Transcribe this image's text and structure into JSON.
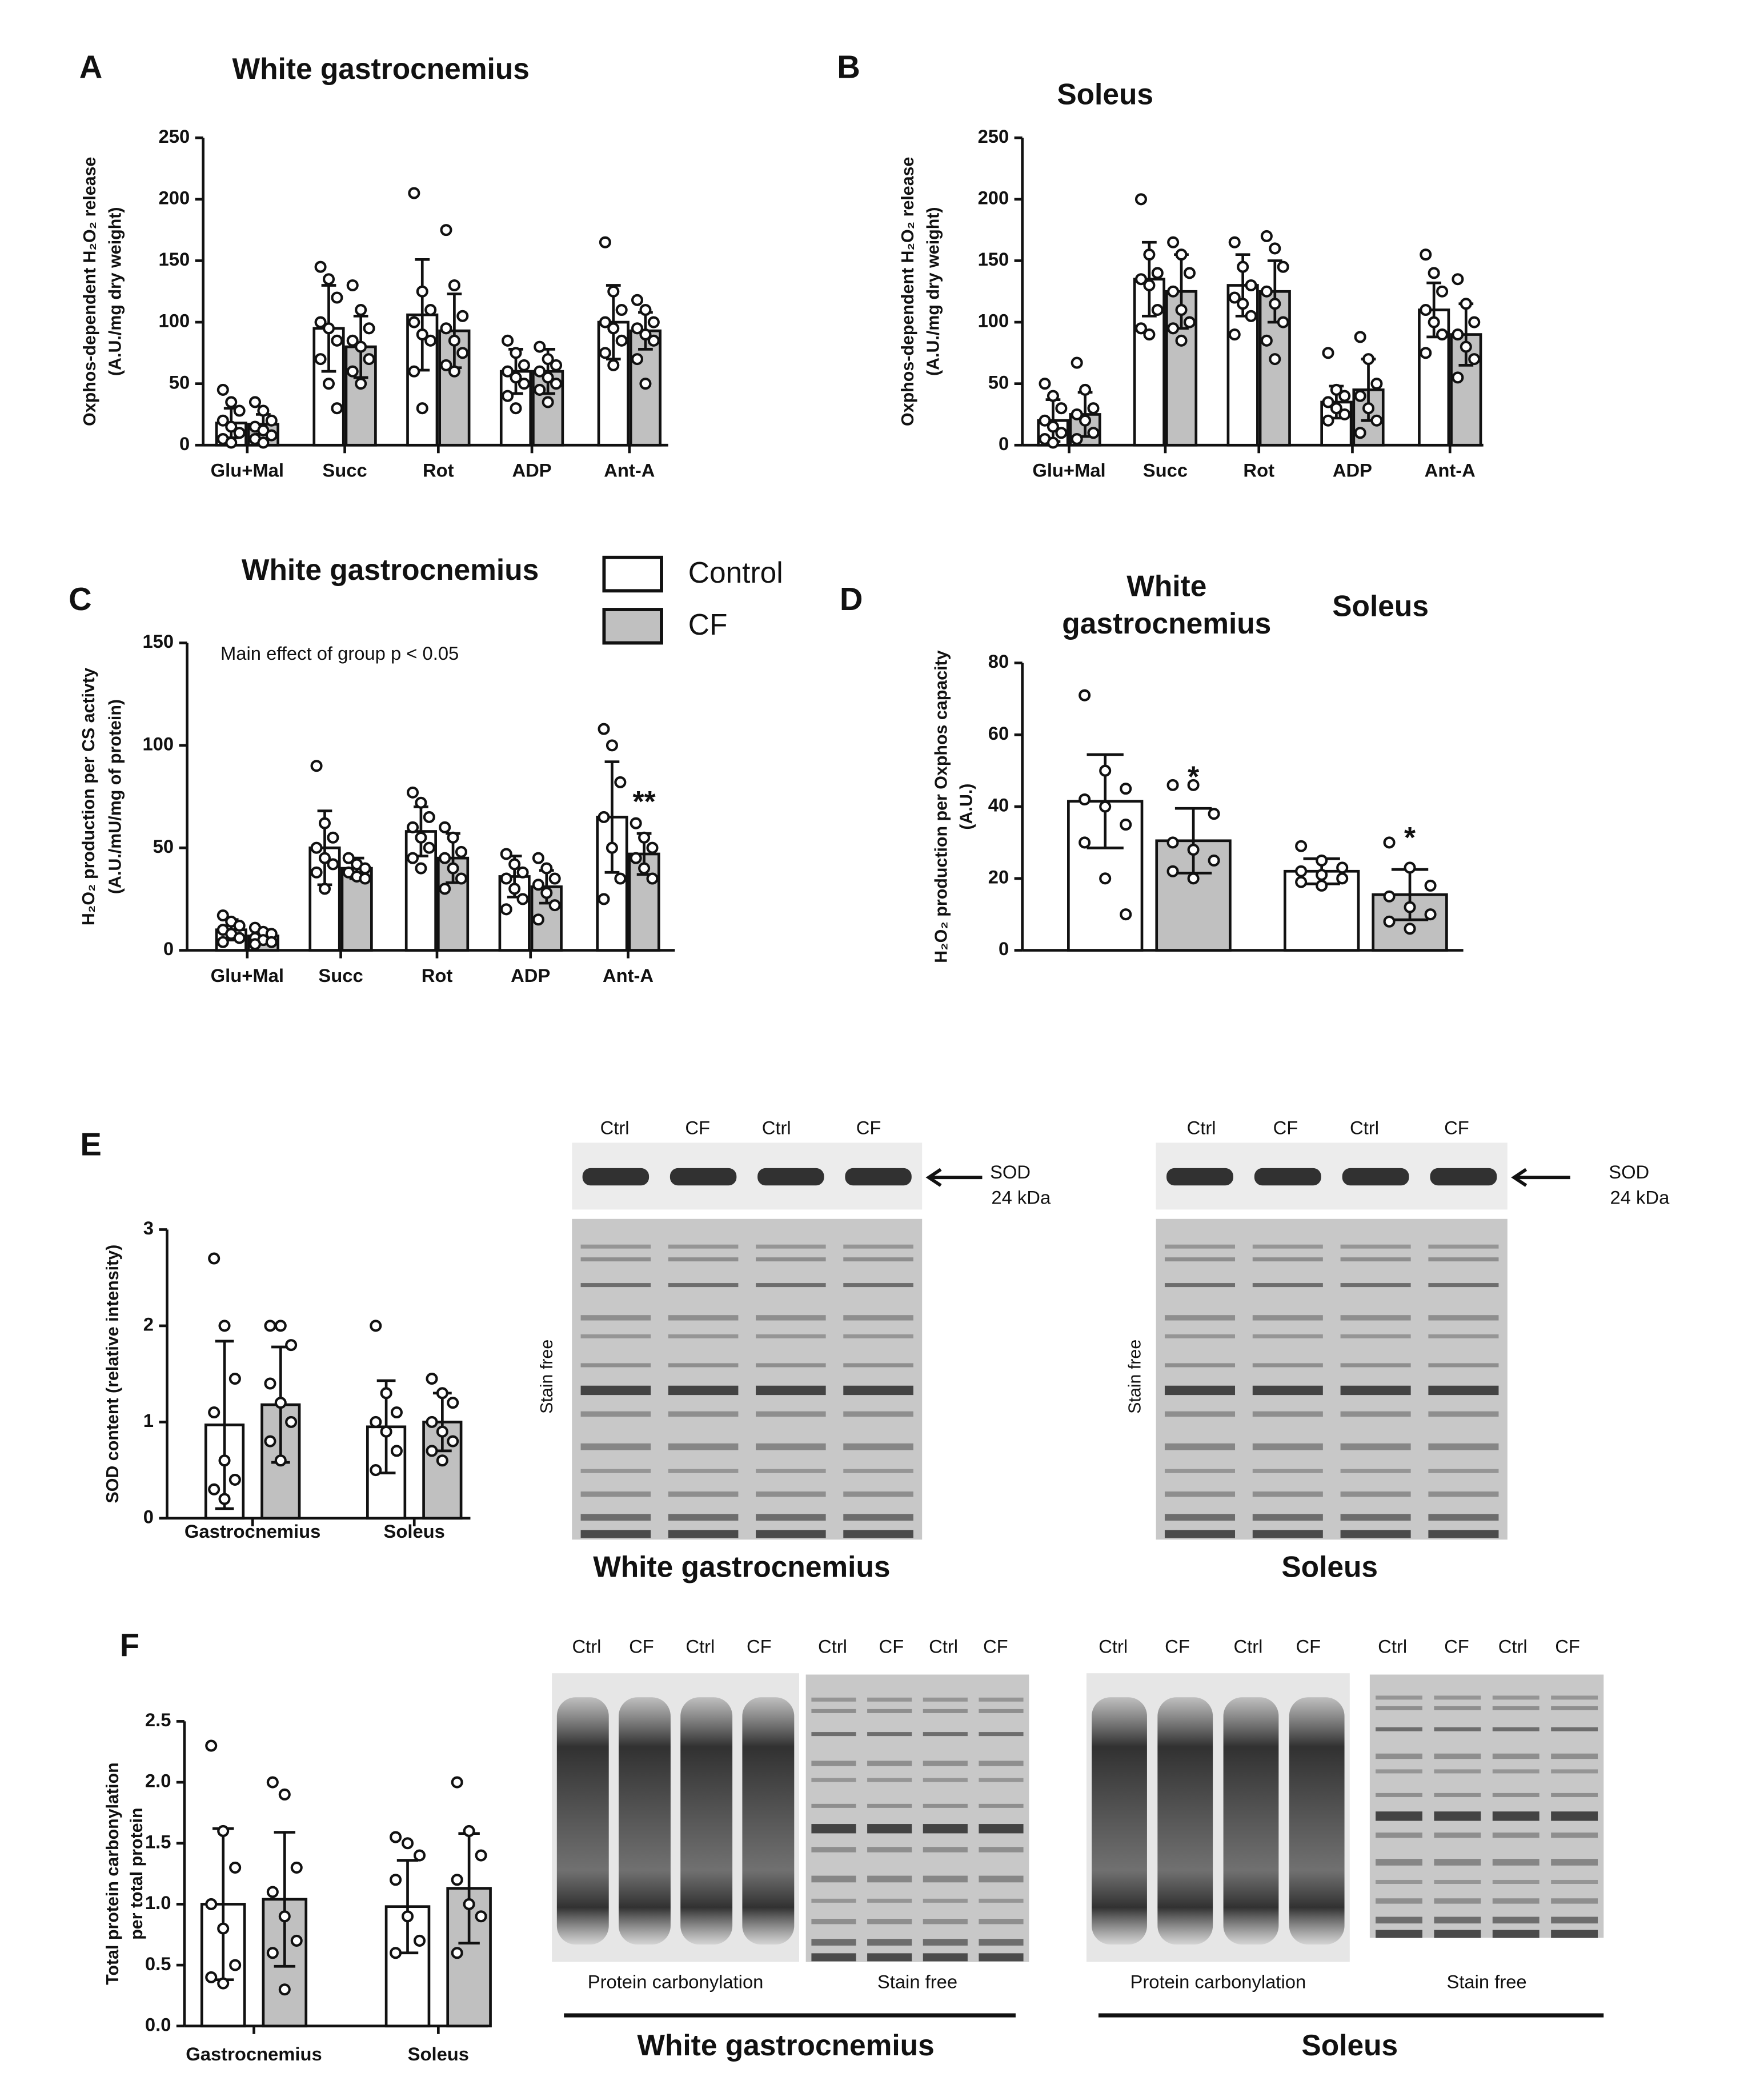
{
  "chart_data": [
    {
      "type": "bar",
      "panel": "A",
      "title": "White gastrocnemius",
      "ylabel": [
        "Oxphos-dependent H₂O₂ release",
        "(A.U./mg dry weight)"
      ],
      "categories": [
        "Glu+Mal",
        "Succ",
        "Rot",
        "ADP",
        "Ant-A"
      ],
      "ylim": [
        0,
        250
      ],
      "yticks": [
        0,
        50,
        100,
        150,
        200,
        250
      ],
      "series": [
        {
          "name": "Control",
          "color": "#ffffff",
          "values": [
            18,
            95,
            106,
            60,
            100
          ],
          "errors": [
            12,
            35,
            45,
            18,
            30
          ],
          "points": [
            [
              45,
              35,
              28,
              20,
              15,
              10,
              5,
              2
            ],
            [
              145,
              135,
              120,
              100,
              95,
              85,
              70,
              50,
              30
            ],
            [
              205,
              125,
              110,
              100,
              90,
              85,
              60,
              30
            ],
            [
              85,
              75,
              65,
              60,
              55,
              50,
              40,
              30
            ],
            [
              165,
              125,
              110,
              100,
              95,
              85,
              75,
              65
            ]
          ]
        },
        {
          "name": "CF",
          "color": "#c0c0c0",
          "values": [
            17,
            80,
            93,
            60,
            93
          ],
          "errors": [
            8,
            25,
            30,
            18,
            15
          ],
          "points": [
            [
              35,
              28,
              20,
              15,
              12,
              8,
              5,
              2
            ],
            [
              130,
              110,
              95,
              85,
              80,
              70,
              60,
              50
            ],
            [
              175,
              130,
              105,
              95,
              85,
              75,
              65,
              60
            ],
            [
              80,
              70,
              65,
              60,
              55,
              50,
              45,
              35
            ],
            [
              118,
              110,
              100,
              95,
              90,
              85,
              70,
              50
            ]
          ]
        }
      ]
    },
    {
      "type": "bar",
      "panel": "B",
      "title": "Soleus",
      "ylabel": [
        "Oxphos-dependent H₂O₂ release",
        "(A.U./mg dry weight)"
      ],
      "categories": [
        "Glu+Mal",
        "Succ",
        "Rot",
        "ADP",
        "Ant-A"
      ],
      "ylim": [
        0,
        250
      ],
      "yticks": [
        0,
        50,
        100,
        150,
        200,
        250
      ],
      "series": [
        {
          "name": "Control",
          "color": "#ffffff",
          "values": [
            20,
            135,
            130,
            35,
            110
          ],
          "errors": [
            17,
            30,
            25,
            13,
            22
          ],
          "points": [
            [
              50,
              40,
              30,
              20,
              15,
              10,
              5,
              2
            ],
            [
              200,
              155,
              140,
              135,
              130,
              110,
              95,
              90
            ],
            [
              165,
              145,
              130,
              120,
              115,
              105,
              90
            ],
            [
              75,
              45,
              40,
              35,
              30,
              25,
              20
            ],
            [
              155,
              140,
              125,
              110,
              100,
              90,
              75
            ]
          ]
        },
        {
          "name": "CF",
          "color": "#c0c0c0",
          "values": [
            25,
            125,
            125,
            45,
            90
          ],
          "errors": [
            18,
            30,
            25,
            25,
            25
          ],
          "points": [
            [
              67,
              45,
              30,
              25,
              20,
              10,
              5
            ],
            [
              165,
              155,
              140,
              125,
              110,
              100,
              95,
              85
            ],
            [
              170,
              160,
              145,
              125,
              115,
              100,
              85,
              70
            ],
            [
              88,
              70,
              50,
              40,
              30,
              20,
              10
            ],
            [
              135,
              115,
              100,
              90,
              80,
              70,
              55
            ]
          ]
        }
      ]
    },
    {
      "type": "bar",
      "panel": "C",
      "title": "White gastrocnemius",
      "ylabel": [
        "H₂O₂ production per CS activty",
        "(A.U./mU/mg of protein)"
      ],
      "note": "Main effect of group p < 0.05",
      "categories": [
        "Glu+Mal",
        "Succ",
        "Rot",
        "ADP",
        "Ant-A"
      ],
      "ylim": [
        0,
        150
      ],
      "yticks": [
        0,
        50,
        100,
        150
      ],
      "legend": true,
      "series": [
        {
          "name": "Control",
          "color": "#ffffff",
          "values": [
            10,
            50,
            58,
            36,
            65
          ],
          "errors": [
            5,
            18,
            12,
            10,
            27
          ],
          "points": [
            [
              17,
              14,
              12,
              10,
              8,
              6,
              4
            ],
            [
              90,
              62,
              55,
              50,
              45,
              42,
              38,
              30
            ],
            [
              77,
              72,
              65,
              60,
              55,
              50,
              45,
              40
            ],
            [
              47,
              42,
              38,
              35,
              30,
              25,
              20
            ],
            [
              108,
              100,
              82,
              65,
              50,
              35,
              25
            ]
          ]
        },
        {
          "name": "CF",
          "color": "#c0c0c0",
          "values": [
            7,
            40,
            45,
            31,
            47
          ],
          "errors": [
            3,
            5,
            12,
            8,
            10
          ],
          "annotations": [
            null,
            null,
            null,
            null,
            "**"
          ],
          "points": [
            [
              11,
              9,
              8,
              6,
              5,
              4,
              3
            ],
            [
              45,
              42,
              40,
              38,
              36,
              35
            ],
            [
              60,
              55,
              48,
              45,
              40,
              35,
              30
            ],
            [
              45,
              40,
              35,
              32,
              28,
              22,
              15
            ],
            [
              62,
              55,
              50,
              45,
              40,
              35
            ]
          ]
        }
      ]
    },
    {
      "type": "bar",
      "panel": "D",
      "ylabel": [
        "H₂O₂ production per Oxphos capacity",
        "(A.U.)"
      ],
      "categories": [
        "White gastrocnemius",
        "Soleus"
      ],
      "ylim": [
        0,
        80
      ],
      "yticks": [
        0,
        20,
        40,
        60,
        80
      ],
      "series": [
        {
          "name": "Control",
          "color": "#ffffff",
          "values": [
            41.5,
            22
          ],
          "errors": [
            13,
            3.5
          ],
          "points": [
            [
              71,
              50,
              45,
              42,
              40,
              35,
              30,
              20,
              10
            ],
            [
              29,
              25,
              23,
              22,
              21,
              20,
              19,
              18
            ]
          ]
        },
        {
          "name": "CF",
          "color": "#c0c0c0",
          "values": [
            30.5,
            15.5
          ],
          "errors": [
            9,
            7
          ],
          "annotations": [
            "*",
            "*"
          ],
          "points": [
            [
              46,
              46,
              38,
              30,
              28,
              25,
              22,
              20
            ],
            [
              30,
              23,
              18,
              15,
              12,
              10,
              8,
              6
            ]
          ]
        }
      ]
    },
    {
      "type": "bar",
      "panel": "E",
      "ylabel": [
        "SOD content (relative intensity)"
      ],
      "categories": [
        "Gastrocnemius",
        "Soleus"
      ],
      "ylim": [
        0,
        3
      ],
      "yticks": [
        0,
        1,
        2,
        3
      ],
      "series": [
        {
          "name": "Control",
          "color": "#ffffff",
          "values": [
            0.97,
            0.95
          ],
          "errors": [
            0.87,
            0.48
          ],
          "points": [
            [
              2.7,
              2.0,
              1.45,
              1.1,
              0.6,
              0.4,
              0.3,
              0.2
            ],
            [
              2.0,
              1.3,
              1.1,
              1.0,
              0.9,
              0.7,
              0.5
            ]
          ]
        },
        {
          "name": "CF",
          "color": "#c0c0c0",
          "values": [
            1.18,
            1.0
          ],
          "errors": [
            0.6,
            0.3
          ],
          "points": [
            [
              2.0,
              2.0,
              1.8,
              1.4,
              1.2,
              1.0,
              0.8,
              0.6
            ],
            [
              1.45,
              1.3,
              1.2,
              1.0,
              0.9,
              0.8,
              0.7,
              0.6
            ]
          ]
        }
      ]
    },
    {
      "type": "bar",
      "panel": "F",
      "ylabel": [
        "Total protein carbonylation",
        "per total protein"
      ],
      "categories": [
        "Gastrocnemius",
        "Soleus"
      ],
      "ylim": [
        0,
        2.5
      ],
      "yticks": [
        {
          "value": 0,
          "label": "0.0"
        },
        0.5,
        {
          "value": 1,
          "label": "1.0"
        },
        1.5,
        {
          "value": 2,
          "label": "2.0"
        },
        2.5
      ],
      "series": [
        {
          "name": "Control",
          "color": "#ffffff",
          "values": [
            1.0,
            0.98
          ],
          "errors": [
            0.62,
            0.38
          ],
          "points": [
            [
              2.3,
              1.6,
              1.3,
              1.0,
              0.8,
              0.5,
              0.4,
              0.35
            ],
            [
              1.55,
              1.5,
              1.4,
              1.2,
              0.9,
              0.7,
              0.6
            ]
          ]
        },
        {
          "name": "CF",
          "color": "#c0c0c0",
          "values": [
            1.04,
            1.13
          ],
          "errors": [
            0.55,
            0.45
          ],
          "points": [
            [
              2.0,
              1.9,
              1.3,
              1.1,
              0.9,
              0.7,
              0.6,
              0.3
            ],
            [
              2.0,
              1.6,
              1.4,
              1.2,
              1.0,
              0.9,
              0.6
            ]
          ]
        }
      ]
    }
  ],
  "blots": [
    {
      "lanes": [
        "Ctrl",
        "CF",
        "Ctrl",
        "CF"
      ],
      "protein": "SOD",
      "size": "24 kDa",
      "loading": "Stain free",
      "title": "White gastrocnemius"
    },
    {
      "lanes": [
        "Ctrl",
        "CF",
        "Ctrl",
        "CF"
      ],
      "protein": "SOD",
      "size": "24 kDa",
      "loading": "Stain free",
      "title": "Soleus"
    },
    {
      "carbonylation_lanes": [
        "Ctrl",
        "CF",
        "Ctrl",
        "CF"
      ],
      "stain_lanes": [
        "Ctrl",
        "CF",
        "Ctrl",
        "CF"
      ],
      "carbonylation": "Protein carbonylation",
      "loading": "Stain free",
      "title": "White gastrocnemius"
    },
    {
      "carbonylation_lanes": [
        "Ctrl",
        "CF",
        "Ctrl",
        "CF"
      ],
      "stain_lanes": [
        "Ctrl",
        "CF",
        "Ctrl",
        "CF"
      ],
      "carbonylation": "Protein carbonylation",
      "loading": "Stain free",
      "title": "Soleus"
    }
  ]
}
